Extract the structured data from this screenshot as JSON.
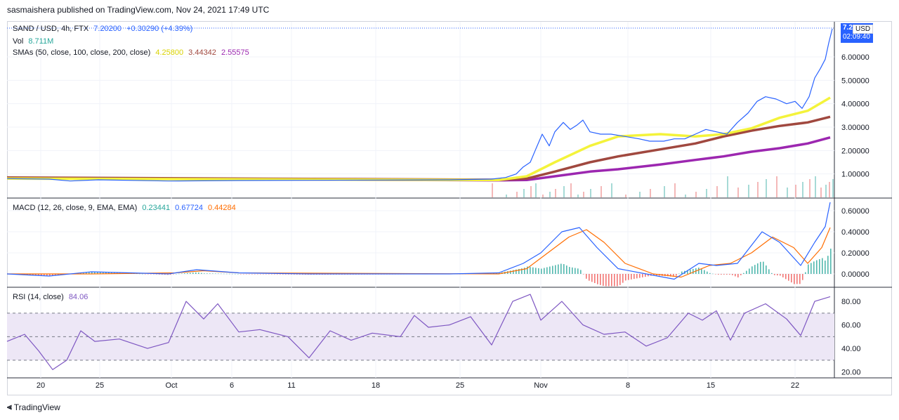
{
  "header": "sasmaishera published on TradingView.com, Nov 24, 2021 17:49 UTC",
  "footer": {
    "brand": "TradingView",
    "logo": "17"
  },
  "price_legend": {
    "symbol": "SAND / USD, 4h, FTX",
    "last": "7.20200",
    "change": "+0.30290 (+4.39%)",
    "vol_label": "Vol",
    "vol_value": "8.711M",
    "sma_label": "SMAs (50, close, 100, close, 200, close)",
    "sma50": "4.25800",
    "sma100": "3.44342",
    "sma200": "2.55575"
  },
  "macd_legend": {
    "label": "MACD (12, 26, close, 9, EMA, EMA)",
    "hist": "0.23441",
    "macd": "0.67724",
    "signal": "0.44284"
  },
  "rsi_legend": {
    "label": "RSI (14, close)",
    "value": "84.06"
  },
  "price_tag": {
    "price": "7.20",
    "currency": "USD",
    "countdown": "02:09:40"
  },
  "colors": {
    "price": "#2962ff",
    "sma50": "#f4f33b",
    "sma100": "#a0483f",
    "sma200": "#9c27b0",
    "macd": "#2962ff",
    "signal": "#ff6d00",
    "hist_pos": "#26a69a",
    "hist_neg": "#ef5350",
    "rsi": "#7e57c2",
    "rsi_band": "#ede7f6"
  },
  "chart_data": [
    {
      "type": "line",
      "panel": "price",
      "x_ticks": [
        "20",
        "25",
        "Oct",
        "6",
        "11",
        "18",
        "25",
        "Nov",
        "8",
        "15",
        "22"
      ],
      "y_ticks": [
        "1.00000",
        "2.00000",
        "3.00000",
        "4.00000",
        "5.00000",
        "6.00000"
      ],
      "ylim": [
        0.0,
        7.5
      ],
      "price_series": [
        [
          0,
          0.8
        ],
        [
          60,
          0.78
        ],
        [
          90,
          0.7
        ],
        [
          130,
          0.75
        ],
        [
          230,
          0.7
        ],
        [
          330,
          0.72
        ],
        [
          430,
          0.73
        ],
        [
          530,
          0.74
        ],
        [
          630,
          0.75
        ],
        [
          690,
          0.78
        ],
        [
          710,
          0.85
        ],
        [
          725,
          1.0
        ],
        [
          735,
          1.3
        ],
        [
          745,
          1.5
        ],
        [
          752,
          2.0
        ],
        [
          762,
          2.7
        ],
        [
          772,
          2.2
        ],
        [
          780,
          2.8
        ],
        [
          792,
          3.2
        ],
        [
          802,
          2.9
        ],
        [
          812,
          3.1
        ],
        [
          820,
          3.3
        ],
        [
          830,
          2.8
        ],
        [
          845,
          2.7
        ],
        [
          860,
          2.7
        ],
        [
          880,
          2.6
        ],
        [
          900,
          2.5
        ],
        [
          915,
          2.4
        ],
        [
          935,
          2.4
        ],
        [
          950,
          2.5
        ],
        [
          965,
          2.5
        ],
        [
          980,
          2.7
        ],
        [
          995,
          2.9
        ],
        [
          1010,
          2.8
        ],
        [
          1025,
          2.7
        ],
        [
          1040,
          3.2
        ],
        [
          1055,
          3.6
        ],
        [
          1068,
          4.1
        ],
        [
          1080,
          4.3
        ],
        [
          1095,
          4.2
        ],
        [
          1110,
          4.0
        ],
        [
          1122,
          4.1
        ],
        [
          1132,
          3.8
        ],
        [
          1142,
          4.3
        ],
        [
          1150,
          5.1
        ],
        [
          1158,
          5.5
        ],
        [
          1165,
          5.9
        ],
        [
          1170,
          6.6
        ],
        [
          1175,
          7.2
        ]
      ],
      "sma50": [
        [
          0,
          0.8
        ],
        [
          700,
          0.74
        ],
        [
          740,
          0.9
        ],
        [
          780,
          1.5
        ],
        [
          830,
          2.2
        ],
        [
          870,
          2.6
        ],
        [
          930,
          2.7
        ],
        [
          980,
          2.6
        ],
        [
          1020,
          2.7
        ],
        [
          1060,
          2.95
        ],
        [
          1100,
          3.4
        ],
        [
          1140,
          3.7
        ],
        [
          1172,
          4.26
        ]
      ],
      "sma100": [
        [
          0,
          0.85
        ],
        [
          700,
          0.75
        ],
        [
          740,
          0.8
        ],
        [
          780,
          1.1
        ],
        [
          830,
          1.5
        ],
        [
          870,
          1.75
        ],
        [
          930,
          2.05
        ],
        [
          980,
          2.3
        ],
        [
          1020,
          2.6
        ],
        [
          1060,
          2.85
        ],
        [
          1100,
          3.05
        ],
        [
          1140,
          3.2
        ],
        [
          1172,
          3.44
        ]
      ],
      "sma200": [
        [
          0,
          0.82
        ],
        [
          700,
          0.73
        ],
        [
          740,
          0.74
        ],
        [
          780,
          0.9
        ],
        [
          830,
          1.1
        ],
        [
          870,
          1.2
        ],
        [
          930,
          1.4
        ],
        [
          980,
          1.6
        ],
        [
          1020,
          1.75
        ],
        [
          1060,
          1.95
        ],
        [
          1100,
          2.1
        ],
        [
          1140,
          2.3
        ],
        [
          1172,
          2.56
        ]
      ]
    },
    {
      "type": "line",
      "panel": "macd",
      "y_ticks": [
        "0.00000",
        "0.20000",
        "0.40000",
        "0.60000"
      ],
      "ylim": [
        -0.12,
        0.72
      ],
      "macd_series": [
        [
          0,
          0.0
        ],
        [
          60,
          -0.02
        ],
        [
          120,
          0.02
        ],
        [
          230,
          0.0
        ],
        [
          270,
          0.04
        ],
        [
          330,
          0.01
        ],
        [
          430,
          0.0
        ],
        [
          530,
          0.0
        ],
        [
          630,
          0.0
        ],
        [
          700,
          0.01
        ],
        [
          735,
          0.1
        ],
        [
          760,
          0.2
        ],
        [
          790,
          0.4
        ],
        [
          815,
          0.44
        ],
        [
          840,
          0.25
        ],
        [
          870,
          0.05
        ],
        [
          910,
          0.0
        ],
        [
          950,
          -0.05
        ],
        [
          985,
          0.1
        ],
        [
          1010,
          0.08
        ],
        [
          1040,
          0.1
        ],
        [
          1075,
          0.4
        ],
        [
          1100,
          0.3
        ],
        [
          1130,
          0.08
        ],
        [
          1150,
          0.3
        ],
        [
          1165,
          0.45
        ],
        [
          1172,
          0.68
        ]
      ],
      "signal_series": [
        [
          0,
          0.0
        ],
        [
          120,
          0.0
        ],
        [
          240,
          0.01
        ],
        [
          280,
          0.03
        ],
        [
          330,
          0.01
        ],
        [
          700,
          0.0
        ],
        [
          740,
          0.05
        ],
        [
          770,
          0.2
        ],
        [
          800,
          0.35
        ],
        [
          825,
          0.42
        ],
        [
          850,
          0.3
        ],
        [
          880,
          0.1
        ],
        [
          920,
          0.0
        ],
        [
          960,
          -0.03
        ],
        [
          1000,
          0.08
        ],
        [
          1030,
          0.1
        ],
        [
          1060,
          0.2
        ],
        [
          1090,
          0.35
        ],
        [
          1120,
          0.25
        ],
        [
          1140,
          0.1
        ],
        [
          1160,
          0.25
        ],
        [
          1172,
          0.44
        ]
      ]
    },
    {
      "type": "line",
      "panel": "rsi",
      "y_ticks": [
        "20.00",
        "40.00",
        "60.00",
        "80.00"
      ],
      "ylim": [
        15,
        92
      ],
      "band": [
        30,
        70
      ],
      "rsi_series": [
        [
          0,
          46
        ],
        [
          25,
          52
        ],
        [
          45,
          38
        ],
        [
          65,
          22
        ],
        [
          85,
          30
        ],
        [
          105,
          55
        ],
        [
          125,
          46
        ],
        [
          160,
          48
        ],
        [
          200,
          40
        ],
        [
          230,
          45
        ],
        [
          255,
          80
        ],
        [
          280,
          65
        ],
        [
          300,
          78
        ],
        [
          330,
          54
        ],
        [
          360,
          56
        ],
        [
          400,
          50
        ],
        [
          430,
          32
        ],
        [
          460,
          55
        ],
        [
          490,
          47
        ],
        [
          520,
          53
        ],
        [
          560,
          50
        ],
        [
          580,
          68
        ],
        [
          600,
          58
        ],
        [
          630,
          60
        ],
        [
          660,
          67
        ],
        [
          690,
          43
        ],
        [
          720,
          80
        ],
        [
          745,
          86
        ],
        [
          760,
          64
        ],
        [
          790,
          80
        ],
        [
          820,
          60
        ],
        [
          850,
          52
        ],
        [
          880,
          54
        ],
        [
          910,
          42
        ],
        [
          940,
          49
        ],
        [
          970,
          70
        ],
        [
          990,
          64
        ],
        [
          1010,
          72
        ],
        [
          1030,
          47
        ],
        [
          1050,
          70
        ],
        [
          1080,
          78
        ],
        [
          1110,
          65
        ],
        [
          1130,
          51
        ],
        [
          1150,
          80
        ],
        [
          1172,
          84
        ]
      ]
    }
  ]
}
